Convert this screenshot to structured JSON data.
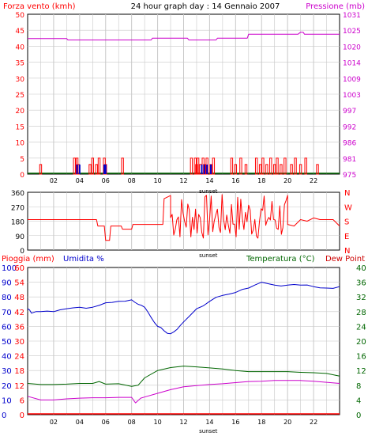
{
  "header": {
    "left_title": "Forza vento (kmh)",
    "center_title": "24 hour graph day : 14 Gennaio 2007",
    "right_title": "Pressione (mb)"
  },
  "bottom_header": {
    "left_title_1": "Pioggia (mm)",
    "left_title_2": "Umidita %",
    "right_title_1": "Temperatura (°C)",
    "right_title_2": "Dew Point"
  },
  "x_axis": {
    "ticks": [
      "02",
      "04",
      "06",
      "08",
      "10",
      "12",
      "14",
      "16",
      "18",
      "20",
      "22"
    ],
    "sunset_label": "sunset"
  },
  "colors": {
    "red": "#ff0000",
    "darkred": "#cc0000",
    "blue": "#0000cc",
    "magenta": "#cc00cc",
    "green": "#006600",
    "grid": "#c8c8c8"
  },
  "chart_data": [
    {
      "type": "bar",
      "name": "wind_pressure",
      "left_axis": {
        "label": "Forza vento (kmh)",
        "ticks": [
          0,
          5,
          10,
          15,
          20,
          25,
          30,
          35,
          40,
          45,
          50
        ],
        "range": [
          0,
          50
        ]
      },
      "right_axis": {
        "label": "Pressione (mb)",
        "ticks": [
          975,
          981,
          986,
          992,
          997,
          1003,
          1009,
          1014,
          1020,
          1025,
          1031
        ],
        "range": [
          975,
          1031
        ]
      },
      "wind_gust_bars_hours": [
        [
          1.0,
          3
        ],
        [
          3.6,
          5
        ],
        [
          3.8,
          5
        ],
        [
          3.9,
          3
        ],
        [
          4.8,
          3
        ],
        [
          5.0,
          5
        ],
        [
          5.3,
          3
        ],
        [
          5.5,
          5
        ],
        [
          5.9,
          5
        ],
        [
          6.0,
          3
        ],
        [
          7.3,
          5
        ],
        [
          12.6,
          5
        ],
        [
          12.9,
          5
        ],
        [
          13.0,
          3
        ],
        [
          13.1,
          5
        ],
        [
          13.3,
          3
        ],
        [
          13.5,
          5
        ],
        [
          13.6,
          3
        ],
        [
          13.8,
          5
        ],
        [
          14.1,
          3
        ],
        [
          14.3,
          5
        ],
        [
          15.7,
          5
        ],
        [
          16.0,
          3
        ],
        [
          16.4,
          5
        ],
        [
          16.8,
          3
        ],
        [
          17.6,
          5
        ],
        [
          17.9,
          3
        ],
        [
          18.1,
          5
        ],
        [
          18.4,
          3
        ],
        [
          18.7,
          5
        ],
        [
          19.0,
          3
        ],
        [
          19.2,
          5
        ],
        [
          19.5,
          3
        ],
        [
          19.8,
          5
        ],
        [
          20.3,
          3
        ],
        [
          20.6,
          5
        ],
        [
          21.0,
          3
        ],
        [
          21.4,
          5
        ],
        [
          22.3,
          3
        ]
      ],
      "wind_avg_bars_hours": [
        [
          3.8,
          3
        ],
        [
          4.0,
          3
        ],
        [
          5.9,
          3
        ],
        [
          6.0,
          3
        ],
        [
          13.4,
          3
        ],
        [
          13.6,
          3
        ],
        [
          13.8,
          3
        ],
        [
          14.1,
          3
        ]
      ],
      "pressure_series": {
        "x": [
          0,
          3,
          3.1,
          9.5,
          9.6,
          12.3,
          12.4,
          14.5,
          14.6,
          16.9,
          17.0,
          20.8,
          21.0,
          21.2,
          21.3,
          24
        ],
        "y": [
          1022.5,
          1022.5,
          1022.0,
          1022.0,
          1022.6,
          1022.6,
          1022.0,
          1022.0,
          1022.6,
          1022.6,
          1024.0,
          1024.0,
          1024.7,
          1024.7,
          1024.0,
          1024.0
        ]
      }
    },
    {
      "type": "line",
      "name": "wind_direction",
      "left_axis": {
        "ticks": [
          0,
          90,
          180,
          270,
          360
        ],
        "range": [
          0,
          360
        ]
      },
      "right_axis_labels": [
        "N",
        "W",
        "S",
        "E",
        "N"
      ],
      "series": [
        {
          "x": [
            0,
            5.3,
            5.4,
            5.9,
            6.0,
            6.3,
            6.4,
            7.2,
            7.3,
            8.0,
            8.1,
            10.4,
            10.5,
            11.0
          ],
          "y": [
            190,
            190,
            150,
            150,
            60,
            60,
            150,
            150,
            130,
            130,
            160,
            160,
            320,
            340
          ]
        }
      ],
      "noisy_range_hours": [
        11.0,
        20.0
      ],
      "tail_series": {
        "x": [
          20.0,
          20.5,
          21.0,
          21.5,
          22.0,
          22.5,
          23.5,
          24
        ],
        "y": [
          160,
          150,
          190,
          180,
          200,
          190,
          190,
          150
        ]
      }
    },
    {
      "type": "line",
      "name": "rain_humidity_temp",
      "left_axis_rain": {
        "ticks": [
          0,
          10,
          20,
          30,
          40,
          50,
          60,
          70,
          80,
          90,
          100
        ],
        "range": [
          0,
          100
        ]
      },
      "left_axis_humidity": {
        "ticks": [
          0,
          6,
          12,
          18,
          24,
          30,
          36,
          42,
          48,
          54,
          60
        ],
        "range": [
          0,
          60
        ]
      },
      "right_axis_temp": {
        "ticks": [
          0,
          4,
          8,
          12,
          16,
          20,
          24,
          28,
          32,
          36,
          40
        ],
        "range": [
          0,
          40
        ]
      },
      "series": [
        {
          "name": "Umidita %",
          "x": [
            0,
            0.3,
            1,
            2,
            3,
            4,
            5,
            6,
            7,
            8,
            8.5,
            9,
            9.5,
            10,
            10.5,
            11,
            11.5,
            12,
            13,
            14,
            15,
            16,
            17,
            18,
            19,
            20,
            21,
            22,
            23,
            24
          ],
          "y": [
            72,
            69,
            70,
            70,
            72,
            73,
            73,
            76,
            77,
            78,
            75,
            73,
            66,
            60,
            57,
            55,
            58,
            63,
            72,
            77,
            81,
            83,
            86,
            90,
            88,
            88,
            88,
            87,
            86,
            87
          ]
        },
        {
          "name": "Temperatura (°C)",
          "x": [
            0,
            1,
            2,
            3,
            4,
            5,
            5.5,
            6,
            7,
            8,
            8.5,
            9,
            10,
            11,
            12,
            13,
            14,
            15,
            16,
            17,
            18,
            19,
            20,
            21,
            22,
            23,
            24
          ],
          "y": [
            8.5,
            8.2,
            8.2,
            8.3,
            8.5,
            8.5,
            9.0,
            8.3,
            8.4,
            7.7,
            8.0,
            10.0,
            12.0,
            12.8,
            13.2,
            13.0,
            12.7,
            12.4,
            12.0,
            11.7,
            11.7,
            11.7,
            11.7,
            11.5,
            11.4,
            11.2,
            10.5
          ]
        },
        {
          "name": "Dew Point",
          "x": [
            0,
            1,
            2,
            3,
            4,
            5,
            6,
            7,
            8,
            8.3,
            8.7,
            9,
            10,
            11,
            12,
            13,
            14,
            15,
            16,
            17,
            18,
            19,
            20,
            21,
            22,
            23,
            24
          ],
          "y": [
            5.0,
            4.0,
            4.0,
            4.3,
            4.5,
            4.6,
            4.6,
            4.7,
            4.7,
            3.2,
            4.5,
            4.8,
            5.8,
            6.8,
            7.6,
            7.9,
            8.2,
            8.4,
            8.7,
            9.0,
            9.1,
            9.3,
            9.3,
            9.3,
            9.1,
            8.8,
            8.5
          ]
        },
        {
          "name": "Pioggia (mm)",
          "x": [
            0,
            24
          ],
          "y": [
            0,
            0
          ]
        }
      ]
    }
  ]
}
